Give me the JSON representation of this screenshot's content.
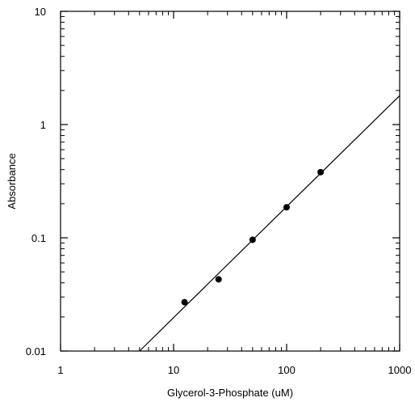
{
  "chart_data": {
    "type": "scatter",
    "title": "",
    "xlabel": "Glycerol-3-Phosphate (uM)",
    "ylabel": "Absorbance",
    "xscale": "log",
    "yscale": "log",
    "xlim": [
      1,
      1000
    ],
    "ylim": [
      0.01,
      10
    ],
    "grid": false,
    "legend": "none",
    "x_ticks": [
      {
        "value": 1,
        "label": "1"
      },
      {
        "value": 10,
        "label": "10"
      },
      {
        "value": 100,
        "label": "100"
      },
      {
        "value": 1000,
        "label": "1000"
      }
    ],
    "y_ticks": [
      {
        "value": 0.01,
        "label": "0.01"
      },
      {
        "value": 0.1,
        "label": "0.1"
      },
      {
        "value": 1,
        "label": "1"
      },
      {
        "value": 10,
        "label": "10"
      }
    ],
    "series": [
      {
        "kind": "points",
        "color": "#000000",
        "points": [
          {
            "x": 12.5,
            "y": 0.027
          },
          {
            "x": 25,
            "y": 0.043
          },
          {
            "x": 50,
            "y": 0.096
          },
          {
            "x": 100,
            "y": 0.186
          },
          {
            "x": 200,
            "y": 0.38
          }
        ]
      },
      {
        "kind": "fit-line",
        "color": "#000000",
        "points": [
          {
            "x": 5,
            "y": 0.01
          },
          {
            "x": 1000,
            "y": 1.8
          }
        ]
      }
    ]
  }
}
